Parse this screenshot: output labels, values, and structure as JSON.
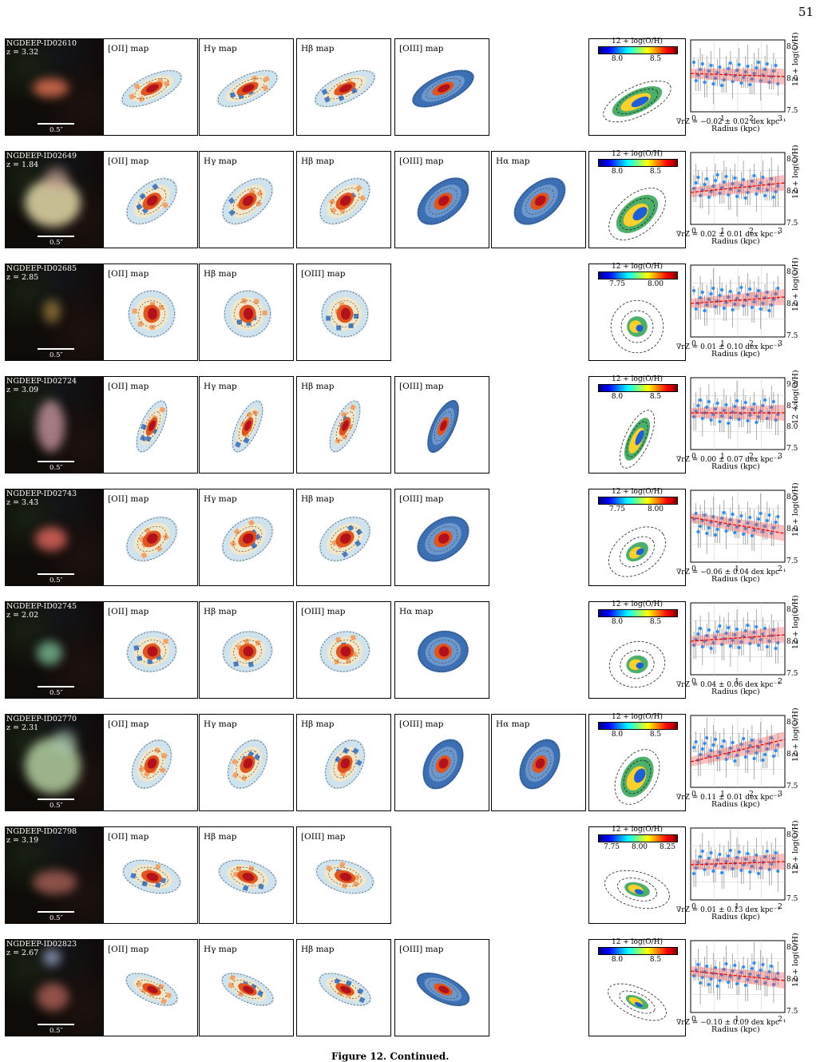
{
  "page_number": "51",
  "caption": "Figure 12. Continued.",
  "rows": [
    {
      "id": "NGDEEP-ID02610",
      "z": "z = 3.32",
      "scale": "0.5″",
      "maps": [
        "[OII] map",
        "Hγ map",
        "Hβ map",
        "[OIII] map"
      ],
      "cbar": {
        "title": "12 + log(O/H)",
        "ticks": [
          "8.0",
          "8.5"
        ]
      },
      "grad": {
        "text": "∇rZ = −0.02 ± 0.02 dex kpc⁻¹",
        "yticks": [
          "8.5",
          "8.0",
          "7.5"
        ],
        "xticks": [
          "0",
          "1",
          "2",
          "3"
        ],
        "xlabel": "Radius (kpc)",
        "ylabel": "12 + log(O/H)"
      }
    },
    {
      "id": "NGDEEP-ID02649",
      "z": "z = 1.84",
      "scale": "0.5″",
      "maps": [
        "[OII] map",
        "Hγ map",
        "Hβ map",
        "[OIII] map",
        "Hα map"
      ],
      "cbar": {
        "title": "12 + log(O/H)",
        "ticks": [
          "8.0",
          "8.5"
        ]
      },
      "grad": {
        "text": "∇rZ = 0.02 ± 0.01 dex kpc⁻¹",
        "yticks": [
          "8.5",
          "8.0",
          "7.5"
        ],
        "xticks": [
          "0",
          "1",
          "2",
          "3"
        ],
        "xlabel": "Radius (kpc)",
        "ylabel": "12 + log(O/H)"
      }
    },
    {
      "id": "NGDEEP-ID02685",
      "z": "z = 2.85",
      "scale": "0.5″",
      "maps": [
        "[OII] map",
        "Hβ map",
        "[OIII] map"
      ],
      "cbar": {
        "title": "12 + log(O/H)",
        "ticks": [
          "7.75",
          "8.00"
        ]
      },
      "grad": {
        "text": "∇rZ = 0.01 ± 0.10 dex kpc⁻¹",
        "yticks": [
          "8.5",
          "8.0",
          "7.5"
        ],
        "xticks": [
          "0",
          "1",
          "2",
          "3"
        ],
        "xlabel": "Radius (kpc)",
        "ylabel": "12 + log(O/H)"
      }
    },
    {
      "id": "NGDEEP-ID02724",
      "z": "z = 3.09",
      "scale": "0.5″",
      "maps": [
        "[OII] map",
        "Hγ map",
        "Hβ map",
        "[OIII] map"
      ],
      "cbar": {
        "title": "12 + log(O/H)",
        "ticks": [
          "8.0",
          "8.5"
        ]
      },
      "grad": {
        "text": "∇rZ = 0.00 ± 0.07 dex kpc⁻¹",
        "yticks": [
          "9.0",
          "8.5",
          "8.0",
          "7.5"
        ],
        "xticks": [
          "0",
          "1",
          "2",
          "3"
        ],
        "xlabel": "Radius (kpc)",
        "ylabel": "12 + log(O/H)"
      }
    },
    {
      "id": "NGDEEP-ID02743",
      "z": "z = 3.43",
      "scale": "0.5″",
      "maps": [
        "[OII] map",
        "Hγ map",
        "Hβ map",
        "[OIII] map"
      ],
      "cbar": {
        "title": "12 + log(O/H)",
        "ticks": [
          "7.75",
          "8.00"
        ]
      },
      "grad": {
        "text": "∇rZ = −0.06 ± 0.04 dex kpc⁻¹",
        "yticks": [
          "8.5",
          "8.0",
          "7.5"
        ],
        "xticks": [
          "0",
          "1",
          "2"
        ],
        "xlabel": "Radius (kpc)",
        "ylabel": "12 + log(O/H)"
      }
    },
    {
      "id": "NGDEEP-ID02745",
      "z": "z = 2.02",
      "scale": "0.5″",
      "maps": [
        "[OII] map",
        "Hβ map",
        "[OIII] map",
        "Hα map"
      ],
      "cbar": {
        "title": "12 + log(O/H)",
        "ticks": [
          "8.0",
          "8.5"
        ]
      },
      "grad": {
        "text": "∇rZ = 0.04 ± 0.06 dex kpc⁻¹",
        "yticks": [
          "8.5",
          "8.0",
          "7.5"
        ],
        "xticks": [
          "0",
          "1",
          "2"
        ],
        "xlabel": "Radius (kpc)",
        "ylabel": "12 + log(O/H)"
      }
    },
    {
      "id": "NGDEEP-ID02770",
      "z": "z = 2.31",
      "scale": "0.5″",
      "maps": [
        "[OII] map",
        "Hγ map",
        "Hβ map",
        "[OIII] map",
        "Hα map"
      ],
      "cbar": {
        "title": "12 + log(O/H)",
        "ticks": [
          "8.0",
          "8.5"
        ]
      },
      "grad": {
        "text": "∇rZ = 0.11 ± 0.01 dex kpc⁻¹",
        "yticks": [
          "8.5",
          "8.0",
          "7.5"
        ],
        "xticks": [
          "0",
          "1",
          "2",
          "3"
        ],
        "xlabel": "Radius (kpc)",
        "ylabel": "12 + log(O/H)"
      }
    },
    {
      "id": "NGDEEP-ID02798",
      "z": "z = 3.19",
      "scale": "0.5″",
      "maps": [
        "[OII] map",
        "Hβ map",
        "[OIII] map"
      ],
      "cbar": {
        "title": "12 + log(O/H)",
        "ticks": [
          "7.75",
          "8.00",
          "8.25"
        ]
      },
      "grad": {
        "text": "∇rZ = 0.01 ± 0.13 dex kpc⁻¹",
        "yticks": [
          "8.5",
          "8.0",
          "7.5"
        ],
        "xticks": [
          "0",
          "1",
          "2"
        ],
        "xlabel": "Radius (kpc)",
        "ylabel": "12 + log(O/H)"
      }
    },
    {
      "id": "NGDEEP-ID02823",
      "z": "z = 2.67",
      "scale": "0.5″",
      "maps": [
        "[OII] map",
        "Hγ map",
        "Hβ map",
        "[OIII] map"
      ],
      "cbar": {
        "title": "12 + log(O/H)",
        "ticks": [
          "8.0",
          "8.5"
        ]
      },
      "grad": {
        "text": "∇rZ = −0.10 ± 0.09 dex kpc⁻¹",
        "yticks": [
          "8.5",
          "8.0",
          "7.5"
        ],
        "xticks": [
          "0",
          "1",
          "2"
        ],
        "xlabel": "Radius (kpc)",
        "ylabel": "12 + log(O/H)"
      }
    }
  ]
}
